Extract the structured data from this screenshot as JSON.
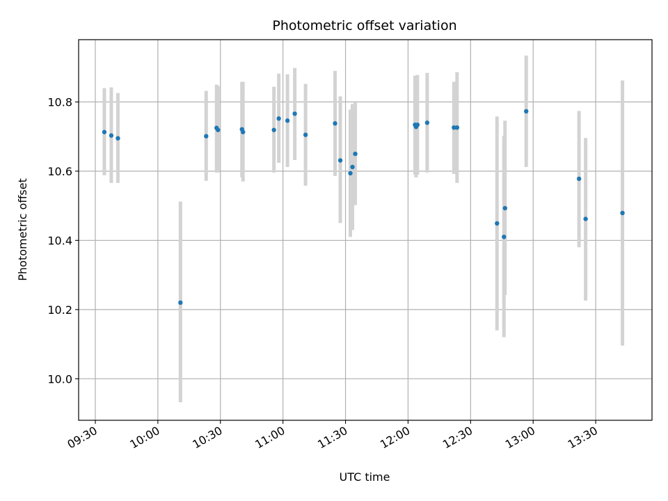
{
  "chart_data": {
    "type": "scatter",
    "title": "Photometric offset variation",
    "xlabel": "UTC time",
    "ylabel": "Photometric offset",
    "xlim": [
      "09:22",
      "13:57"
    ],
    "ylim": [
      9.88,
      10.98
    ],
    "x_ticks": [
      "09:30",
      "10:00",
      "10:30",
      "11:00",
      "11:30",
      "12:00",
      "12:30",
      "13:00",
      "13:30"
    ],
    "y_ticks": [
      "10.0",
      "10.2",
      "10.4",
      "10.6",
      "10.8"
    ],
    "grid": true,
    "marker_color": "#1f77b4",
    "errorbar_color": "#d3d3d3",
    "points": [
      {
        "t": "09:34:20",
        "y": 10.713,
        "lo": 10.588,
        "hi": 10.84
      },
      {
        "t": "09:37:40",
        "y": 10.703,
        "lo": 10.566,
        "hi": 10.842
      },
      {
        "t": "09:40:50",
        "y": 10.695,
        "lo": 10.566,
        "hi": 10.826
      },
      {
        "t": "10:10:50",
        "y": 10.22,
        "lo": 9.932,
        "hi": 10.512
      },
      {
        "t": "10:23:10",
        "y": 10.701,
        "lo": 10.572,
        "hi": 10.832
      },
      {
        "t": "10:28:10",
        "y": 10.725,
        "lo": 10.596,
        "hi": 10.85
      },
      {
        "t": "10:28:50",
        "y": 10.719,
        "lo": 10.596,
        "hi": 10.846
      },
      {
        "t": "10:40:20",
        "y": 10.721,
        "lo": 10.582,
        "hi": 10.858
      },
      {
        "t": "10:40:50",
        "y": 10.713,
        "lo": 10.57,
        "hi": 10.858
      },
      {
        "t": "10:55:40",
        "y": 10.719,
        "lo": 10.596,
        "hi": 10.844
      },
      {
        "t": "10:58:00",
        "y": 10.752,
        "lo": 10.624,
        "hi": 10.882
      },
      {
        "t": "11:02:10",
        "y": 10.746,
        "lo": 10.612,
        "hi": 10.88
      },
      {
        "t": "11:05:40",
        "y": 10.766,
        "lo": 10.632,
        "hi": 10.898
      },
      {
        "t": "11:10:50",
        "y": 10.705,
        "lo": 10.558,
        "hi": 10.852
      },
      {
        "t": "11:25:00",
        "y": 10.738,
        "lo": 10.586,
        "hi": 10.89
      },
      {
        "t": "11:27:30",
        "y": 10.631,
        "lo": 10.45,
        "hi": 10.816
      },
      {
        "t": "11:32:20",
        "y": 10.594,
        "lo": 10.41,
        "hi": 10.778
      },
      {
        "t": "11:33:20",
        "y": 10.612,
        "lo": 10.43,
        "hi": 10.794
      },
      {
        "t": "11:34:40",
        "y": 10.65,
        "lo": 10.502,
        "hi": 10.798
      },
      {
        "t": "12:03:20",
        "y": 10.734,
        "lo": 10.59,
        "hi": 10.876
      },
      {
        "t": "12:03:50",
        "y": 10.728,
        "lo": 10.582,
        "hi": 10.876
      },
      {
        "t": "12:04:30",
        "y": 10.734,
        "lo": 10.59,
        "hi": 10.878
      },
      {
        "t": "12:09:10",
        "y": 10.74,
        "lo": 10.596,
        "hi": 10.884
      },
      {
        "t": "12:22:00",
        "y": 10.726,
        "lo": 10.592,
        "hi": 10.858
      },
      {
        "t": "12:23:30",
        "y": 10.726,
        "lo": 10.566,
        "hi": 10.886
      },
      {
        "t": "12:42:40",
        "y": 10.449,
        "lo": 10.14,
        "hi": 10.758
      },
      {
        "t": "12:46:00",
        "y": 10.41,
        "lo": 10.12,
        "hi": 10.702
      },
      {
        "t": "12:46:30",
        "y": 10.493,
        "lo": 10.242,
        "hi": 10.746
      },
      {
        "t": "12:56:40",
        "y": 10.773,
        "lo": 10.612,
        "hi": 10.934
      },
      {
        "t": "13:22:00",
        "y": 10.578,
        "lo": 10.38,
        "hi": 10.774
      },
      {
        "t": "13:25:10",
        "y": 10.462,
        "lo": 10.226,
        "hi": 10.696
      },
      {
        "t": "13:42:50",
        "y": 10.479,
        "lo": 10.096,
        "hi": 10.862
      }
    ]
  }
}
